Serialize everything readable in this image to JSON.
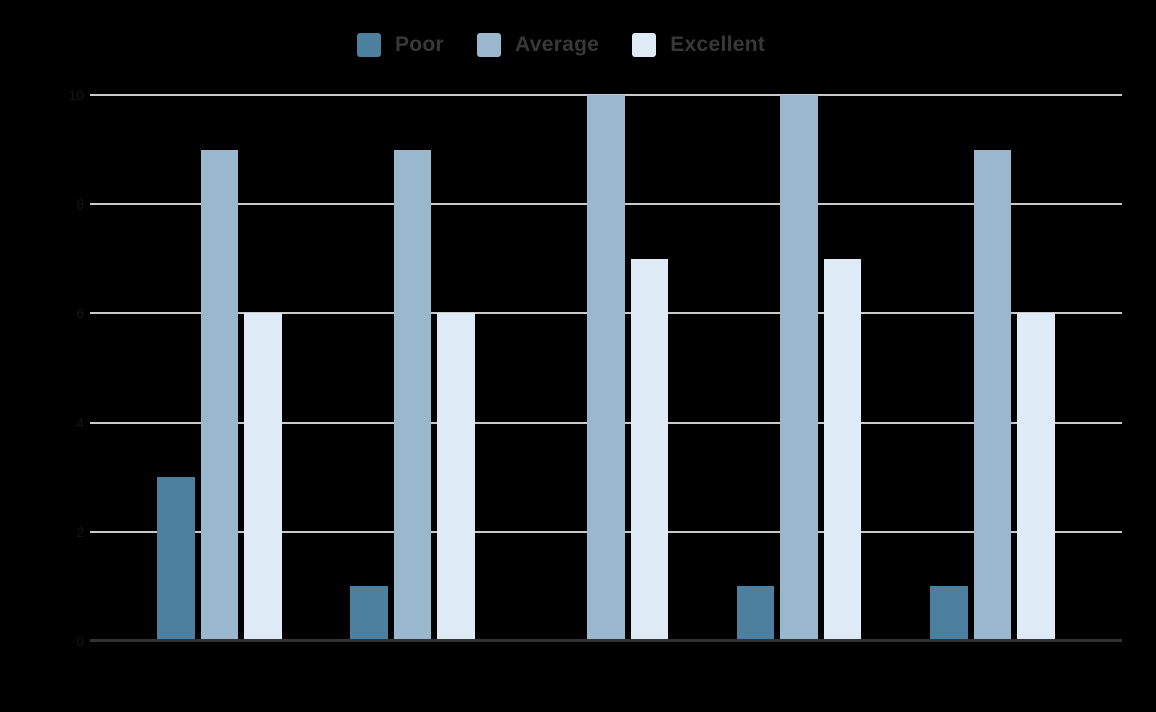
{
  "legend": {
    "items": [
      {
        "label": "Poor",
        "color": "#4d7f9f"
      },
      {
        "label": "Average",
        "color": "#99b8ce"
      },
      {
        "label": "Excellent",
        "color": "#deebf6"
      }
    ]
  },
  "y_axis": {
    "tick_labels": [
      "0",
      "2",
      "4",
      "6",
      "8",
      "10"
    ]
  },
  "chart_data": {
    "type": "bar",
    "title": "",
    "xlabel": "",
    "ylabel": "",
    "categories": [
      "",
      "",
      "",
      "",
      ""
    ],
    "series": [
      {
        "name": "Poor",
        "color": "#4d7f9f",
        "values": [
          3,
          1,
          0,
          1,
          1
        ]
      },
      {
        "name": "Average",
        "color": "#99b8ce",
        "values": [
          9,
          9,
          10,
          10,
          9
        ]
      },
      {
        "name": "Excellent",
        "color": "#deebf6",
        "values": [
          6,
          6,
          7,
          7,
          6
        ]
      }
    ],
    "ylim": [
      0,
      10
    ],
    "y_ticks": [
      0,
      2,
      4,
      6,
      8,
      10
    ],
    "grid": true,
    "legend_position": "top"
  },
  "colors": {
    "background": "#000000",
    "gridline": "#c9c9c9",
    "axis_line": "#333333",
    "legend_text": "#383838",
    "tick_label": "#161616"
  }
}
